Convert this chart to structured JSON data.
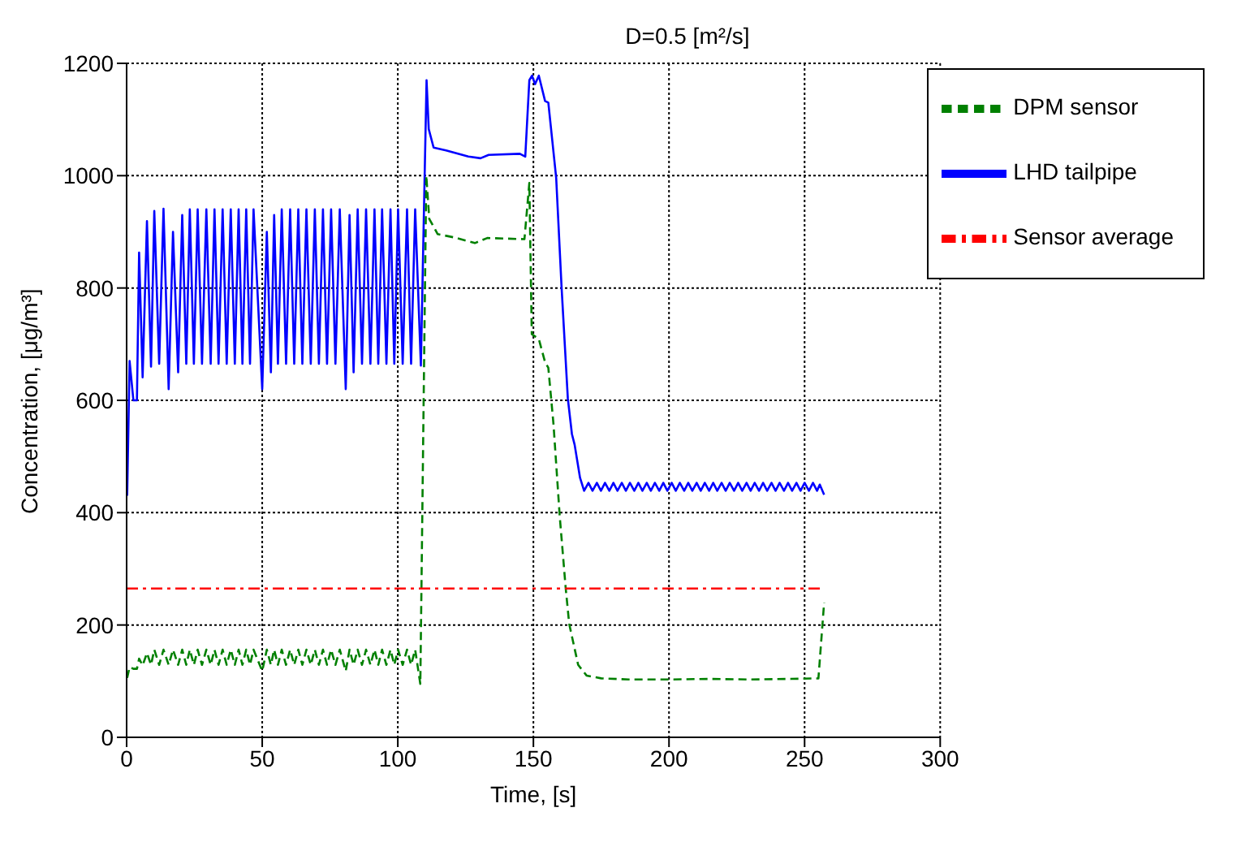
{
  "chart_data": {
    "type": "line",
    "title": "D=0.5 [m²/s]",
    "xlabel": "Time, [s]",
    "ylabel": "Concentration, [μg/m³]",
    "xlim": [
      0,
      300
    ],
    "xticks": [
      0,
      50,
      100,
      150,
      200,
      250,
      300
    ],
    "ylim": [
      0,
      1200
    ],
    "yticks": [
      0,
      200,
      400,
      600,
      800,
      1000,
      1200
    ],
    "grid": true,
    "legend": "top right",
    "marker": "none",
    "series": [
      {
        "name": "LHD tailpipe",
        "color": "#0000ff",
        "line_style": "solid",
        "x": [
          0.2,
          1.1,
          2.5,
          3.8,
          4.6,
          5.9,
          7.5,
          9.0,
          10.2,
          12.0,
          13.6,
          15.5,
          17.1,
          19.0,
          20.5,
          22.0,
          23.3,
          24.8,
          26.2,
          27.8,
          29.4,
          31.0,
          32.4,
          33.9,
          35.4,
          36.9,
          38.4,
          39.9,
          41.3,
          42.7,
          44.1,
          45.5,
          46.8,
          50.0,
          51.7,
          53.2,
          54.4,
          55.8,
          57.2,
          58.8,
          60.3,
          61.8,
          63.3,
          64.8,
          66.3,
          67.9,
          69.4,
          70.9,
          72.4,
          73.9,
          75.4,
          77.0,
          78.6,
          80.8,
          82.2,
          83.7,
          85.2,
          86.8,
          88.3,
          89.9,
          91.4,
          92.8,
          94.2,
          95.8,
          97.3,
          98.7,
          100.1,
          101.8,
          103.4,
          104.9,
          106.4,
          108.5,
          110.6,
          111.4,
          113.2,
          117.8,
          126,
          130.5,
          133.5,
          145,
          147,
          148.5,
          149.5,
          150.6,
          152,
          154.3,
          155.5,
          158.4,
          160.4,
          162.7,
          164.2,
          165.2,
          167.2,
          168.7,
          170.3,
          171.8,
          173.4,
          174.9,
          176.4,
          178.0,
          179.5,
          181.0,
          182.6,
          184.1,
          185.6,
          187.2,
          188.7,
          190.2,
          191.8,
          193.3,
          194.8,
          196.4,
          197.9,
          199.4,
          201.0,
          202.5,
          204.0,
          205.6,
          207.1,
          208.6,
          210.2,
          211.7,
          213.2,
          214.8,
          216.3,
          217.8,
          219.4,
          220.9,
          222.4,
          224.0,
          225.5,
          227.0,
          228.6,
          230.1,
          231.6,
          233.2,
          234.7,
          236.2,
          237.8,
          239.3,
          240.8,
          242.4,
          243.9,
          245.4,
          247.0,
          248.5,
          250.0,
          251.6,
          253.1,
          254.6,
          255.6,
          257.2
        ],
        "values": [
          430,
          670,
          600,
          600,
          863,
          641,
          919,
          660,
          937,
          665,
          941,
          620,
          900,
          650,
          930,
          665,
          940,
          665,
          940,
          665,
          940,
          665,
          940,
          665,
          940,
          665,
          940,
          665,
          940,
          665,
          940,
          665,
          940,
          620,
          900,
          650,
          930,
          665,
          940,
          665,
          940,
          665,
          940,
          665,
          940,
          665,
          940,
          665,
          940,
          665,
          940,
          665,
          940,
          620,
          930,
          650,
          940,
          665,
          940,
          665,
          940,
          665,
          940,
          665,
          940,
          665,
          940,
          665,
          940,
          665,
          940,
          662,
          1170,
          1083,
          1050,
          1045,
          1034,
          1031,
          1037,
          1039,
          1034,
          1170,
          1178,
          1163,
          1178,
          1133,
          1130,
          996,
          800,
          603,
          540,
          521,
          462,
          439,
          453,
          439,
          453,
          439,
          453,
          439,
          453,
          439,
          453,
          439,
          453,
          439,
          453,
          439,
          453,
          439,
          453,
          439,
          453,
          439,
          453,
          439,
          453,
          439,
          453,
          439,
          453,
          439,
          453,
          439,
          453,
          439,
          453,
          439,
          453,
          439,
          453,
          439,
          453,
          439,
          453,
          439,
          453,
          439,
          453,
          439,
          453,
          439,
          453,
          439,
          453,
          439,
          453,
          439,
          453,
          439,
          450,
          432
        ]
      },
      {
        "name": "DPM sensor",
        "color": "#008000",
        "line_style": "dashed",
        "x": [
          0.2,
          1.1,
          2.5,
          3.8,
          4.6,
          5.9,
          7.5,
          9.0,
          10.2,
          12.0,
          13.6,
          15.5,
          17.1,
          19.0,
          20.5,
          22.0,
          23.3,
          24.8,
          26.2,
          27.8,
          29.4,
          31.0,
          32.4,
          33.9,
          35.4,
          36.9,
          38.4,
          39.9,
          41.3,
          42.7,
          44.1,
          45.5,
          46.8,
          50.0,
          51.7,
          53.2,
          54.4,
          55.8,
          57.2,
          58.8,
          60.3,
          61.8,
          63.3,
          64.8,
          66.3,
          67.9,
          69.4,
          70.9,
          72.4,
          73.9,
          75.4,
          77.0,
          78.6,
          80.8,
          82.2,
          83.7,
          85.2,
          86.8,
          88.3,
          89.9,
          91.4,
          92.8,
          94.2,
          95.8,
          97.3,
          98.7,
          100.1,
          101.8,
          103.4,
          104.9,
          106.4,
          108.3,
          110.5,
          111.6,
          114.7,
          120.8,
          128.4,
          133,
          146.7,
          148.5,
          149.4,
          152,
          154.3,
          155.5,
          157.4,
          159.7,
          161.9,
          163.2,
          166.5,
          169.6,
          175,
          185,
          200,
          215,
          230,
          245,
          255.1,
          257.2
        ],
        "values": [
          106,
          125,
          122,
          122,
          140,
          128,
          150,
          129,
          156,
          129,
          156,
          129,
          156,
          129,
          156,
          129,
          156,
          129,
          156,
          129,
          156,
          129,
          156,
          129,
          156,
          129,
          156,
          129,
          156,
          129,
          156,
          129,
          156,
          118,
          156,
          129,
          156,
          129,
          156,
          129,
          156,
          129,
          156,
          129,
          156,
          129,
          156,
          129,
          156,
          129,
          156,
          129,
          156,
          118,
          156,
          129,
          156,
          129,
          156,
          129,
          156,
          129,
          156,
          129,
          156,
          129,
          156,
          129,
          156,
          129,
          156,
          95,
          1000,
          923,
          896,
          890,
          880,
          889,
          887,
          987,
          718,
          709,
          668,
          658,
          558,
          394,
          266,
          202,
          129,
          110,
          105,
          103,
          103,
          104,
          103,
          104,
          105,
          240
        ]
      },
      {
        "name": "Sensor average",
        "color": "#ff0000",
        "line_style": "dashdot",
        "x": [
          0,
          257.2
        ],
        "values": [
          265,
          265
        ]
      }
    ]
  }
}
